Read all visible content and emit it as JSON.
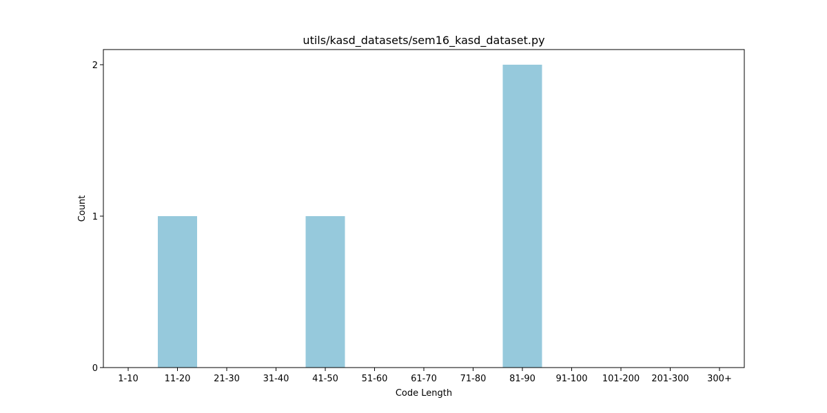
{
  "chart_data": {
    "type": "bar",
    "title": "utils/kasd_datasets/sem16_kasd_dataset.py",
    "xlabel": "Code Length",
    "ylabel": "Count",
    "categories": [
      "1-10",
      "11-20",
      "21-30",
      "31-40",
      "41-50",
      "51-60",
      "61-70",
      "71-80",
      "81-90",
      "91-100",
      "101-200",
      "201-300",
      "300+"
    ],
    "values": [
      0,
      1,
      0,
      0,
      1,
      0,
      0,
      0,
      2,
      0,
      0,
      0,
      0
    ],
    "ylim": [
      0,
      2.1
    ],
    "yticks": [
      "0",
      "1",
      "2"
    ],
    "grid": false,
    "colors": {
      "bar": "#96c9dc",
      "axis": "#000000"
    }
  }
}
